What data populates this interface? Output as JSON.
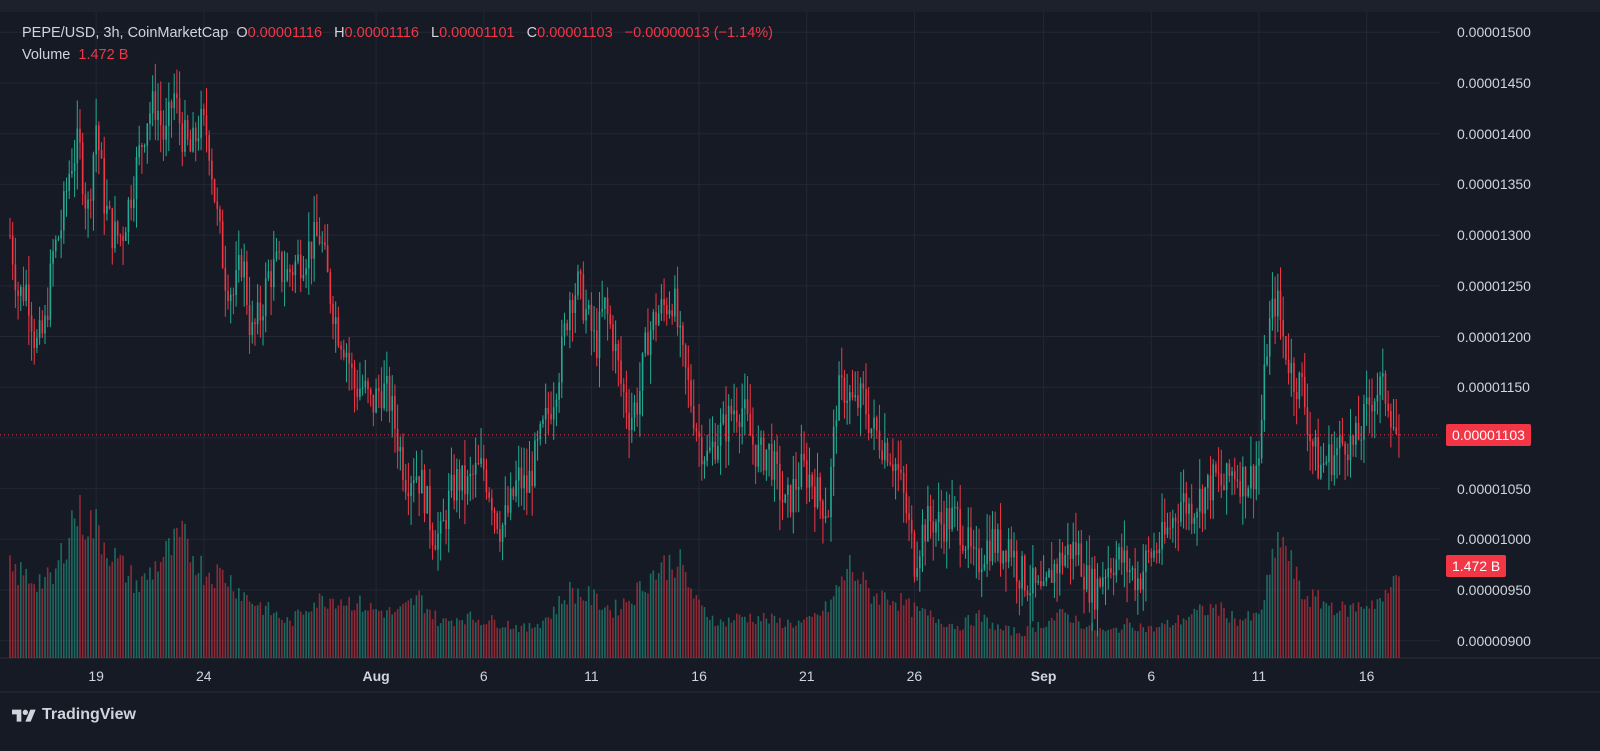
{
  "legend": {
    "symbol": "PEPE/USD, 3h, CoinMarketCap",
    "o_label": "O",
    "o": "0.00001116",
    "h_label": "H",
    "h": "0.00001116",
    "l_label": "L",
    "l": "0.00001101",
    "c_label": "C",
    "c": "0.00001103",
    "change": "−0.00000013 (−1.14%)",
    "volume_label": "Volume",
    "volume": "1.472 B"
  },
  "price_tag": "0.00001103",
  "volume_tag": "1.472 B",
  "brand": "TradingView",
  "colors": {
    "up": "#22ab94",
    "down": "#f23645",
    "background": "#161a25",
    "grid": "#232733"
  },
  "chart_data": {
    "type": "candlestick",
    "interval": "3h",
    "y_ticks": [
      "0.00001500",
      "0.00001450",
      "0.00001400",
      "0.00001350",
      "0.00001300",
      "0.00001250",
      "0.00001200",
      "0.00001150",
      "0.00001100",
      "0.00001050",
      "0.00001000",
      "0.00000950",
      "0.00000900"
    ],
    "ylim": [
      8.83e-06,
      1.52e-05
    ],
    "x_ticks": [
      {
        "label": "19",
        "bold": false
      },
      {
        "label": "24",
        "bold": false
      },
      {
        "label": "Aug",
        "bold": true
      },
      {
        "label": "6",
        "bold": false
      },
      {
        "label": "11",
        "bold": false
      },
      {
        "label": "16",
        "bold": false
      },
      {
        "label": "21",
        "bold": false
      },
      {
        "label": "26",
        "bold": false
      },
      {
        "label": "Sep",
        "bold": true
      },
      {
        "label": "6",
        "bold": false
      },
      {
        "label": "11",
        "bold": false
      },
      {
        "label": "16",
        "bold": false
      }
    ],
    "x_tick_day_index": [
      4,
      9,
      17,
      22,
      27,
      32,
      37,
      42,
      48,
      53,
      58,
      63
    ],
    "days_span": [
      0,
      67.15
    ],
    "last_price": 1.103e-05,
    "price_path": [
      [
        0.0,
        1.3e-05
      ],
      [
        0.4,
        1.24e-05
      ],
      [
        0.8,
        1.25e-05
      ],
      [
        1.2,
        1.19e-05
      ],
      [
        1.6,
        1.205e-05
      ],
      [
        2.0,
        1.28e-05
      ],
      [
        2.4,
        1.31e-05
      ],
      [
        2.8,
        1.37e-05
      ],
      [
        3.2,
        1.39e-05
      ],
      [
        3.6,
        1.32e-05
      ],
      [
        4.0,
        1.41e-05
      ],
      [
        4.4,
        1.33e-05
      ],
      [
        4.8,
        1.3e-05
      ],
      [
        5.2,
        1.3e-05
      ],
      [
        5.6,
        1.34e-05
      ],
      [
        6.0,
        1.38e-05
      ],
      [
        6.4,
        1.42e-05
      ],
      [
        6.8,
        1.43e-05
      ],
      [
        7.2,
        1.39e-05
      ],
      [
        7.6,
        1.44e-05
      ],
      [
        8.0,
        1.4e-05
      ],
      [
        8.4,
        1.38e-05
      ],
      [
        8.8,
        1.41e-05
      ],
      [
        9.2,
        1.4e-05
      ],
      [
        9.6,
        1.32e-05
      ],
      [
        10.0,
        1.26e-05
      ],
      [
        10.4,
        1.24e-05
      ],
      [
        10.8,
        1.28e-05
      ],
      [
        11.2,
        1.2e-05
      ],
      [
        11.6,
        1.22e-05
      ],
      [
        12.0,
        1.26e-05
      ],
      [
        12.4,
        1.27e-05
      ],
      [
        12.8,
        1.26e-05
      ],
      [
        13.2,
        1.27e-05
      ],
      [
        13.6,
        1.28e-05
      ],
      [
        14.0,
        1.29e-05
      ],
      [
        14.4,
        1.3e-05
      ],
      [
        14.8,
        1.25e-05
      ],
      [
        15.2,
        1.21e-05
      ],
      [
        15.6,
        1.19e-05
      ],
      [
        16.0,
        1.15e-05
      ],
      [
        16.4,
        1.15e-05
      ],
      [
        16.8,
        1.13e-05
      ],
      [
        17.2,
        1.15e-05
      ],
      [
        17.6,
        1.14e-05
      ],
      [
        18.0,
        1.1e-05
      ],
      [
        18.4,
        1.06e-05
      ],
      [
        18.8,
        1.07e-05
      ],
      [
        19.2,
        1.05e-05
      ],
      [
        19.6,
        1.01e-05
      ],
      [
        20.0,
        1e-05
      ],
      [
        20.4,
        1.04e-05
      ],
      [
        20.8,
        1.06e-05
      ],
      [
        21.2,
        1.05e-05
      ],
      [
        21.6,
        1.065e-05
      ],
      [
        22.0,
        1.07e-05
      ],
      [
        22.4,
        1.04e-05
      ],
      [
        22.8,
        1.01e-05
      ],
      [
        23.2,
        1.03e-05
      ],
      [
        23.6,
        1.06e-05
      ],
      [
        24.0,
        1.05e-05
      ],
      [
        24.4,
        1.08e-05
      ],
      [
        24.8,
        1.11e-05
      ],
      [
        25.2,
        1.14e-05
      ],
      [
        25.6,
        1.18e-05
      ],
      [
        26.0,
        1.24e-05
      ],
      [
        26.4,
        1.25e-05
      ],
      [
        26.8,
        1.22e-05
      ],
      [
        27.2,
        1.19e-05
      ],
      [
        27.6,
        1.23e-05
      ],
      [
        28.0,
        1.2e-05
      ],
      [
        28.4,
        1.15e-05
      ],
      [
        28.8,
        1.12e-05
      ],
      [
        29.2,
        1.14e-05
      ],
      [
        29.6,
        1.2e-05
      ],
      [
        30.0,
        1.22e-05
      ],
      [
        30.4,
        1.23e-05
      ],
      [
        30.8,
        1.24e-05
      ],
      [
        31.2,
        1.18e-05
      ],
      [
        31.6,
        1.14e-05
      ],
      [
        32.0,
        1.1e-05
      ],
      [
        32.4,
        1.08e-05
      ],
      [
        32.8,
        1.1e-05
      ],
      [
        33.2,
        1.11e-05
      ],
      [
        33.6,
        1.13e-05
      ],
      [
        34.0,
        1.13e-05
      ],
      [
        34.4,
        1.1e-05
      ],
      [
        34.8,
        1.08e-05
      ],
      [
        35.2,
        1.09e-05
      ],
      [
        35.6,
        1.06e-05
      ],
      [
        36.0,
        1.03e-05
      ],
      [
        36.4,
        1.05e-05
      ],
      [
        36.8,
        1.07e-05
      ],
      [
        37.2,
        1.06e-05
      ],
      [
        37.6,
        1.04e-05
      ],
      [
        38.0,
        1.03e-05
      ],
      [
        38.4,
        1.14e-05
      ],
      [
        38.8,
        1.15e-05
      ],
      [
        39.2,
        1.13e-05
      ],
      [
        39.6,
        1.14e-05
      ],
      [
        40.0,
        1.11e-05
      ],
      [
        40.4,
        1.1e-05
      ],
      [
        40.8,
        1.09e-05
      ],
      [
        41.2,
        1.07e-05
      ],
      [
        41.6,
        1.03e-05
      ],
      [
        42.0,
        9.8e-06
      ],
      [
        42.4,
        1.01e-05
      ],
      [
        42.8,
        1.02e-05
      ],
      [
        43.2,
        1.015e-05
      ],
      [
        43.6,
        1.02e-05
      ],
      [
        44.0,
        1.02e-05
      ],
      [
        44.4,
        1e-05
      ],
      [
        44.8,
        9.7e-06
      ],
      [
        45.2,
        9.9e-06
      ],
      [
        45.6,
        1e-05
      ],
      [
        46.0,
        9.9e-06
      ],
      [
        46.4,
        1e-05
      ],
      [
        46.8,
        9.7e-06
      ],
      [
        47.2,
        9.6e-06
      ],
      [
        47.6,
        9.5e-06
      ],
      [
        48.0,
        9.4e-06
      ],
      [
        48.4,
        9.7e-06
      ],
      [
        48.8,
        9.8e-06
      ],
      [
        49.2,
        9.9e-06
      ],
      [
        49.6,
        9.9e-06
      ],
      [
        50.0,
        9.6e-06
      ],
      [
        50.4,
        9.5e-06
      ],
      [
        50.8,
        9.7e-06
      ],
      [
        51.2,
        9.8e-06
      ],
      [
        51.6,
        9.8e-06
      ],
      [
        52.0,
        9.7e-06
      ],
      [
        52.4,
        9.6e-06
      ],
      [
        52.8,
        9.8e-06
      ],
      [
        53.2,
        9.9e-06
      ],
      [
        53.6,
        1e-05
      ],
      [
        54.0,
        1.02e-05
      ],
      [
        54.4,
        1.04e-05
      ],
      [
        54.8,
        1.03e-05
      ],
      [
        55.2,
        1.04e-05
      ],
      [
        55.6,
        1.05e-05
      ],
      [
        56.0,
        1.06e-05
      ],
      [
        56.4,
        1.05e-05
      ],
      [
        56.8,
        1.07e-05
      ],
      [
        57.2,
        1.06e-05
      ],
      [
        57.6,
        1.06e-05
      ],
      [
        58.0,
        1.08e-05
      ],
      [
        58.4,
        1.2e-05
      ],
      [
        58.8,
        1.24e-05
      ],
      [
        59.2,
        1.19e-05
      ],
      [
        59.6,
        1.16e-05
      ],
      [
        60.0,
        1.15e-05
      ],
      [
        60.4,
        1.1e-05
      ],
      [
        60.8,
        1.07e-05
      ],
      [
        61.2,
        1.08e-05
      ],
      [
        61.6,
        1.085e-05
      ],
      [
        62.0,
        1.1e-05
      ],
      [
        62.4,
        1.09e-05
      ],
      [
        62.8,
        1.11e-05
      ],
      [
        63.2,
        1.14e-05
      ],
      [
        63.6,
        1.15e-05
      ],
      [
        64.0,
        1.14e-05
      ],
      [
        64.4,
        1.1e-05
      ],
      [
        64.6,
        1.103e-05
      ]
    ],
    "volume_path": [
      [
        0.0,
        0.55
      ],
      [
        1.0,
        0.5
      ],
      [
        2.0,
        0.48
      ],
      [
        3.0,
        0.92
      ],
      [
        4.0,
        0.82
      ],
      [
        5.0,
        0.6
      ],
      [
        6.0,
        0.45
      ],
      [
        7.0,
        0.62
      ],
      [
        8.0,
        0.75
      ],
      [
        9.0,
        0.55
      ],
      [
        10.0,
        0.52
      ],
      [
        11.0,
        0.38
      ],
      [
        12.0,
        0.3
      ],
      [
        13.0,
        0.22
      ],
      [
        14.0,
        0.35
      ],
      [
        15.0,
        0.38
      ],
      [
        16.0,
        0.35
      ],
      [
        17.0,
        0.3
      ],
      [
        18.0,
        0.28
      ],
      [
        19.0,
        0.38
      ],
      [
        20.0,
        0.22
      ],
      [
        21.0,
        0.26
      ],
      [
        22.0,
        0.24
      ],
      [
        23.0,
        0.22
      ],
      [
        24.0,
        0.18
      ],
      [
        25.0,
        0.26
      ],
      [
        26.0,
        0.42
      ],
      [
        27.0,
        0.38
      ],
      [
        28.0,
        0.3
      ],
      [
        29.0,
        0.4
      ],
      [
        30.0,
        0.55
      ],
      [
        31.0,
        0.62
      ],
      [
        32.0,
        0.32
      ],
      [
        33.0,
        0.22
      ],
      [
        34.0,
        0.26
      ],
      [
        35.0,
        0.25
      ],
      [
        36.0,
        0.22
      ],
      [
        37.0,
        0.22
      ],
      [
        38.0,
        0.32
      ],
      [
        39.0,
        0.58
      ],
      [
        40.0,
        0.4
      ],
      [
        41.0,
        0.38
      ],
      [
        42.0,
        0.3
      ],
      [
        43.0,
        0.25
      ],
      [
        44.0,
        0.2
      ],
      [
        45.0,
        0.26
      ],
      [
        46.0,
        0.18
      ],
      [
        47.0,
        0.16
      ],
      [
        48.0,
        0.22
      ],
      [
        49.0,
        0.28
      ],
      [
        50.0,
        0.2
      ],
      [
        51.0,
        0.16
      ],
      [
        52.0,
        0.22
      ],
      [
        53.0,
        0.18
      ],
      [
        54.0,
        0.22
      ],
      [
        55.0,
        0.28
      ],
      [
        56.0,
        0.32
      ],
      [
        57.0,
        0.24
      ],
      [
        58.0,
        0.26
      ],
      [
        59.0,
        0.78
      ],
      [
        60.0,
        0.4
      ],
      [
        61.0,
        0.35
      ],
      [
        62.0,
        0.3
      ],
      [
        63.0,
        0.34
      ],
      [
        64.0,
        0.38
      ],
      [
        64.6,
        0.66
      ]
    ]
  }
}
